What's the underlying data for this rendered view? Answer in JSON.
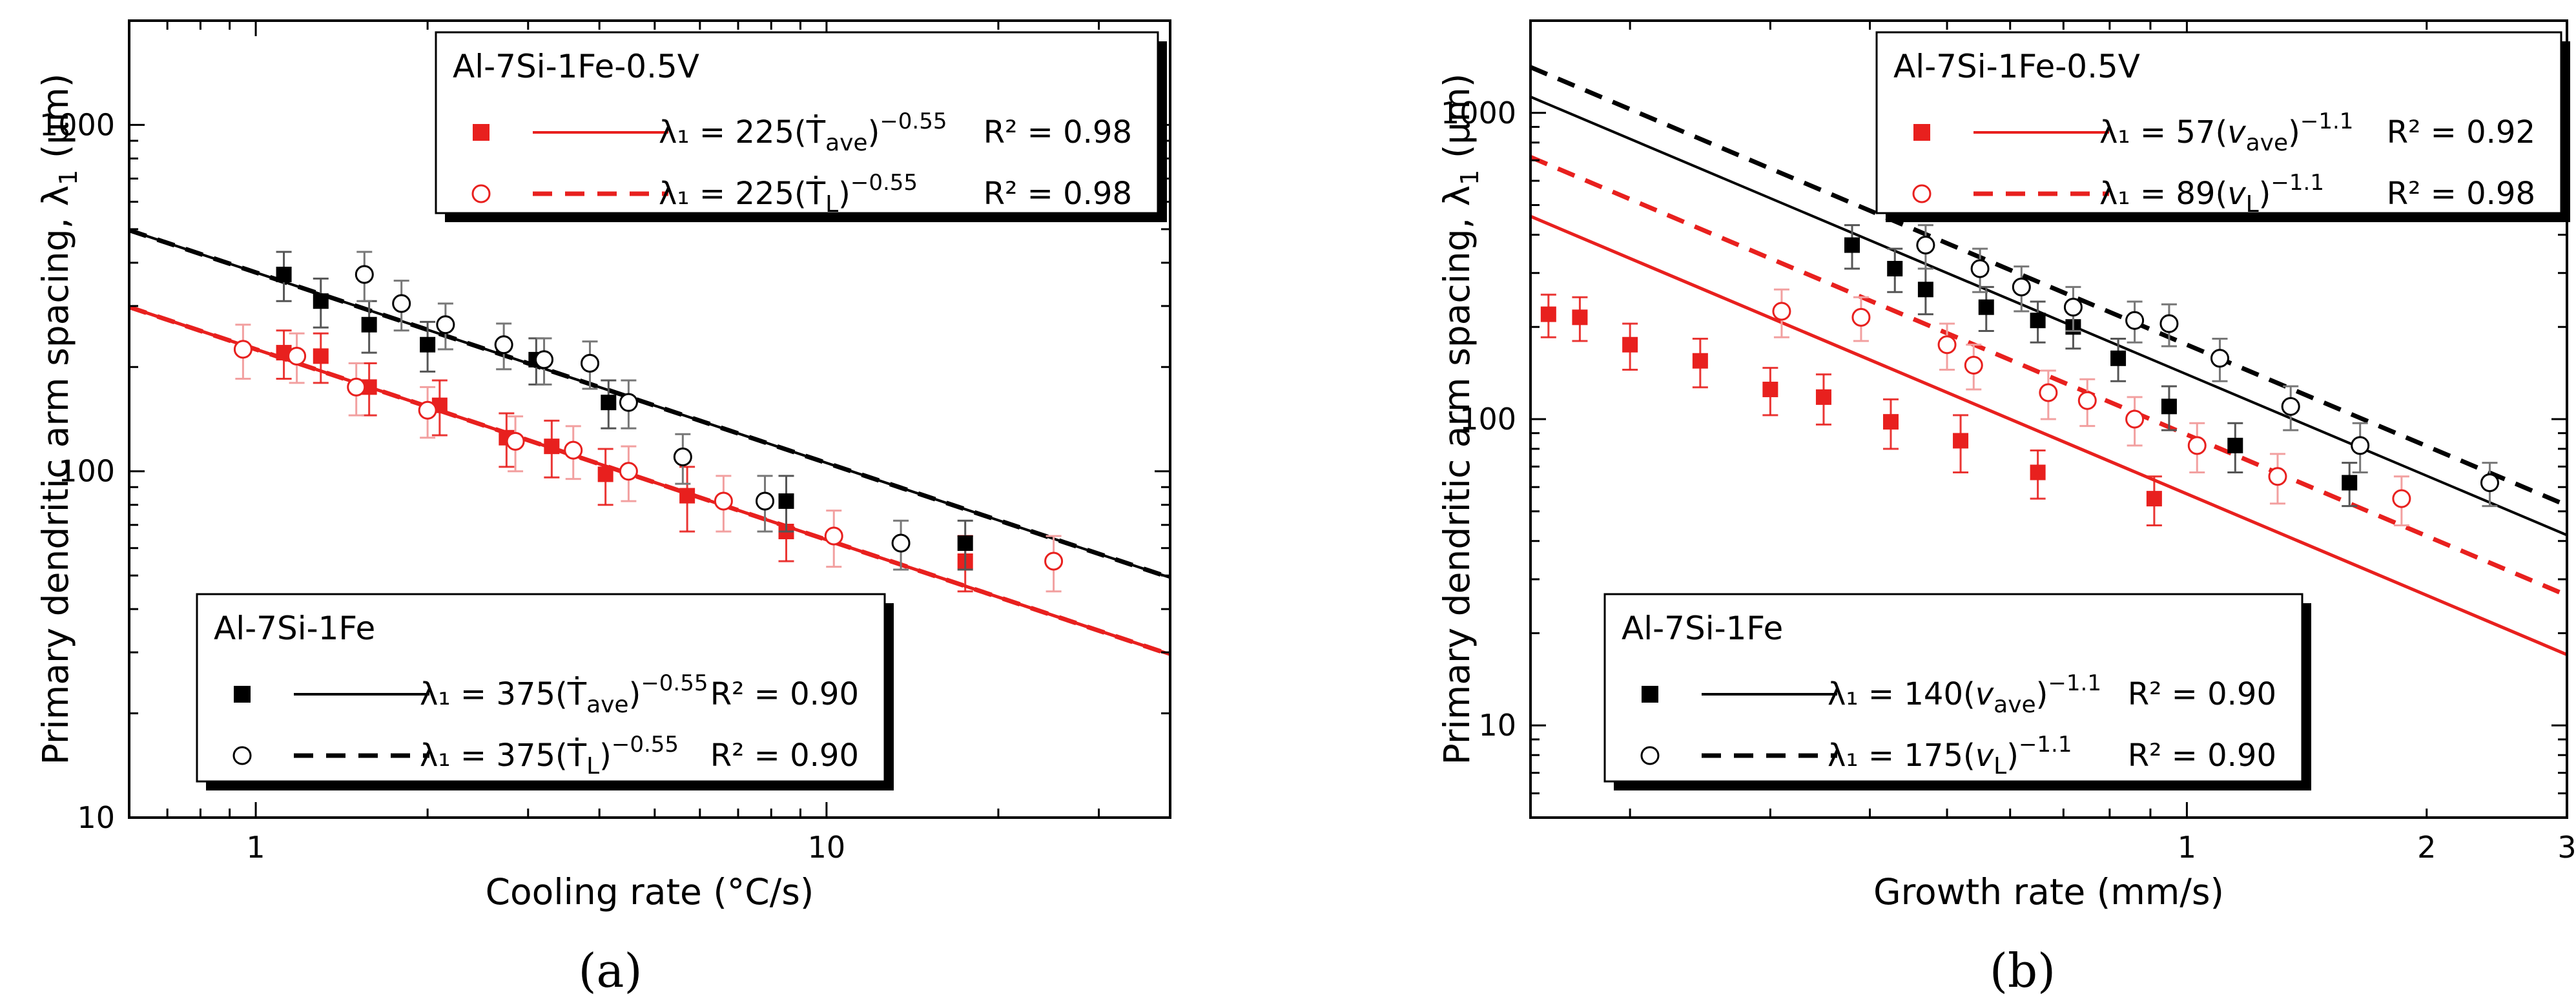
{
  "chart_data": [
    {
      "type": "scatter",
      "panel_label": "(a)",
      "xscale": "log",
      "yscale": "log",
      "xlim": [
        0.6,
        40
      ],
      "ylim": [
        10,
        2000
      ],
      "xticks": [
        {
          "v": 1,
          "label": "1"
        },
        {
          "v": 10,
          "label": "10"
        }
      ],
      "yticks": [
        {
          "v": 10,
          "label": "10"
        },
        {
          "v": 100,
          "label": "100"
        },
        {
          "v": 1000,
          "label": "1000"
        }
      ],
      "xlabel": "Cooling rate (°C/s)",
      "ylabel": "Primary dendritic arm spacing, λ",
      "ylabel_sub": "1",
      "ylabel_unit": " (μm)",
      "series": [
        {
          "name": "Al-7Si-1Fe-0.5V T_ave",
          "color": "#e8201e",
          "marker": "square-filled",
          "errColor": "#e8201e",
          "errOpacity": 0.9,
          "points": [
            [
              1.12,
              220,
              35
            ],
            [
              1.3,
              215,
              35
            ],
            [
              1.58,
              175,
              30
            ],
            [
              2.1,
              155,
              28
            ],
            [
              2.75,
              125,
              22
            ],
            [
              3.3,
              118,
              22
            ],
            [
              4.1,
              98,
              18
            ],
            [
              5.7,
              85,
              18
            ],
            [
              8.5,
              67,
              12
            ],
            [
              17.5,
              55,
              10
            ]
          ]
        },
        {
          "name": "Al-7Si-1Fe-0.5V T_L",
          "color": "#e8201e",
          "marker": "circle-open",
          "errColor": "#f2a0a0",
          "errOpacity": 1,
          "points": [
            [
              0.95,
              225,
              40
            ],
            [
              1.18,
              215,
              35
            ],
            [
              1.5,
              175,
              30
            ],
            [
              2.0,
              150,
              25
            ],
            [
              2.85,
              122,
              22
            ],
            [
              3.6,
              115,
              20
            ],
            [
              4.5,
              100,
              18
            ],
            [
              6.6,
              82,
              15
            ],
            [
              10.3,
              65,
              12
            ],
            [
              25,
              55,
              10
            ]
          ]
        },
        {
          "name": "Al-7Si-1Fe T_ave",
          "color": "#000000",
          "marker": "square-filled",
          "errColor": "#555555",
          "errOpacity": 1,
          "points": [
            [
              1.12,
              370,
              60
            ],
            [
              1.3,
              310,
              50
            ],
            [
              1.58,
              265,
              45
            ],
            [
              2.0,
              232,
              38
            ],
            [
              3.1,
              210,
              32
            ],
            [
              4.15,
              158,
              25
            ],
            [
              8.5,
              82,
              15
            ],
            [
              17.5,
              62,
              10
            ]
          ]
        },
        {
          "name": "Al-7Si-1Fe T_L",
          "color": "#000000",
          "marker": "circle-open",
          "errColor": "#777777",
          "errOpacity": 1,
          "points": [
            [
              1.55,
              370,
              60
            ],
            [
              1.8,
              305,
              50
            ],
            [
              2.15,
              265,
              40
            ],
            [
              2.72,
              232,
              35
            ],
            [
              3.2,
              210,
              32
            ],
            [
              3.85,
              205,
              32
            ],
            [
              4.5,
              158,
              25
            ],
            [
              5.6,
              110,
              18
            ],
            [
              7.8,
              82,
              15
            ],
            [
              13.5,
              62,
              10
            ]
          ]
        }
      ],
      "fits": [
        {
          "name": "red solid",
          "A": 225,
          "n": -0.55,
          "color": "#e8201e",
          "dash": "none",
          "width": 5
        },
        {
          "name": "red dashed",
          "A": 225,
          "n": -0.55,
          "color": "#e8201e",
          "dash": "28 18",
          "width": 7
        },
        {
          "name": "black solid",
          "A": 375,
          "n": -0.55,
          "color": "#000000",
          "dash": "none",
          "width": 4
        },
        {
          "name": "black dashed",
          "A": 375,
          "n": -0.55,
          "color": "#000000",
          "dash": "28 18",
          "width": 7
        }
      ],
      "legends": [
        {
          "title": "Al-7Si-1Fe-0.5V",
          "position": "top-center",
          "entries": [
            {
              "marker": "square-filled",
              "color": "#e8201e",
              "dash": "none",
              "eq_coef": "λ₁ = 225(",
              "eq_var": "Ṫ",
              "eq_sub": "ave",
              "eq_exp": "−0.55",
              "r2": "R² = 0.98"
            },
            {
              "marker": "circle-open",
              "color": "#e8201e",
              "dash": "dashed",
              "eq_coef": "λ₁ = 225(",
              "eq_var": "Ṫ",
              "eq_sub": "L",
              "eq_exp": "−0.55",
              "r2": "R² = 0.98"
            }
          ]
        },
        {
          "title": "Al-7Si-1Fe",
          "position": "bottom-left",
          "entries": [
            {
              "marker": "square-filled",
              "color": "#000000",
              "dash": "none",
              "eq_coef": "λ₁ = 375(",
              "eq_var": "Ṫ",
              "eq_sub": "ave",
              "eq_exp": "−0.55",
              "r2": "R² = 0.90"
            },
            {
              "marker": "circle-open",
              "color": "#000000",
              "dash": "dashed",
              "eq_coef": "λ₁ = 375(",
              "eq_var": "Ṫ",
              "eq_sub": "L",
              "eq_exp": "−0.55",
              "r2": "R² = 0.90"
            }
          ]
        }
      ]
    },
    {
      "type": "scatter",
      "panel_label": "(b)",
      "xscale": "log",
      "yscale": "log",
      "xlim": [
        0.15,
        3
      ],
      "ylim": [
        5,
        2000
      ],
      "xticks": [
        {
          "v": 1,
          "label": "1"
        },
        {
          "v": 2,
          "label": "2"
        },
        {
          "v": 3,
          "label": "3"
        }
      ],
      "yticks": [
        {
          "v": 10,
          "label": "10"
        },
        {
          "v": 100,
          "label": "100"
        },
        {
          "v": 1000,
          "label": "1000"
        }
      ],
      "xlabel": "Growth rate (mm/s)",
      "ylabel": "Primary dendritic arm spacing, λ",
      "ylabel_sub": "1",
      "ylabel_unit": " (μm)",
      "series": [
        {
          "name": "Al-7Si-1Fe-0.5V v_ave",
          "color": "#e8201e",
          "marker": "square-filled",
          "errColor": "#e8201e",
          "errOpacity": 0.9,
          "points": [
            [
              0.158,
              220,
              35
            ],
            [
              0.173,
              215,
              35
            ],
            [
              0.2,
              175,
              30
            ],
            [
              0.245,
              155,
              28
            ],
            [
              0.3,
              125,
              22
            ],
            [
              0.35,
              118,
              22
            ],
            [
              0.425,
              98,
              18
            ],
            [
              0.52,
              85,
              18
            ],
            [
              0.65,
              67,
              12
            ],
            [
              0.91,
              55,
              10
            ]
          ]
        },
        {
          "name": "Al-7Si-1Fe-0.5V v_L",
          "color": "#e8201e",
          "marker": "circle-open",
          "errColor": "#f2a0a0",
          "errOpacity": 1,
          "points": [
            [
              0.31,
              225,
              40
            ],
            [
              0.39,
              215,
              35
            ],
            [
              0.5,
              175,
              30
            ],
            [
              0.54,
              150,
              25
            ],
            [
              0.67,
              122,
              22
            ],
            [
              0.75,
              115,
              20
            ],
            [
              0.86,
              100,
              18
            ],
            [
              1.03,
              82,
              15
            ],
            [
              1.3,
              65,
              12
            ],
            [
              1.86,
              55,
              10
            ]
          ]
        },
        {
          "name": "Al-7Si-1Fe v_ave",
          "color": "#000000",
          "marker": "square-filled",
          "errColor": "#555555",
          "errOpacity": 1,
          "points": [
            [
              0.38,
              370,
              60
            ],
            [
              0.43,
              310,
              50
            ],
            [
              0.47,
              265,
              45
            ],
            [
              0.56,
              232,
              38
            ],
            [
              0.65,
              210,
              32
            ],
            [
              0.72,
              200,
              30
            ],
            [
              0.82,
              158,
              25
            ],
            [
              0.95,
              110,
              18
            ],
            [
              1.15,
              82,
              15
            ],
            [
              1.6,
              62,
              10
            ]
          ]
        },
        {
          "name": "Al-7Si-1Fe v_L",
          "color": "#000000",
          "marker": "circle-open",
          "errColor": "#777777",
          "errOpacity": 1,
          "points": [
            [
              0.47,
              370,
              60
            ],
            [
              0.55,
              310,
              50
            ],
            [
              0.62,
              270,
              45
            ],
            [
              0.72,
              232,
              38
            ],
            [
              0.86,
              210,
              32
            ],
            [
              0.95,
              205,
              32
            ],
            [
              1.1,
              158,
              25
            ],
            [
              1.35,
              110,
              18
            ],
            [
              1.65,
              82,
              15
            ],
            [
              2.4,
              62,
              10
            ]
          ]
        }
      ],
      "fits": [
        {
          "name": "red solid",
          "A": 57,
          "n": -1.1,
          "color": "#e8201e",
          "dash": "none",
          "width": 5
        },
        {
          "name": "red dashed",
          "A": 89,
          "n": -1.1,
          "color": "#e8201e",
          "dash": "28 18",
          "width": 7
        },
        {
          "name": "black solid",
          "A": 140,
          "n": -1.1,
          "color": "#000000",
          "dash": "none",
          "width": 4
        },
        {
          "name": "black dashed",
          "A": 175,
          "n": -1.1,
          "color": "#000000",
          "dash": "28 18",
          "width": 7
        }
      ],
      "legends": [
        {
          "title": "Al-7Si-1Fe-0.5V",
          "position": "top-right",
          "entries": [
            {
              "marker": "square-filled",
              "color": "#e8201e",
              "dash": "none",
              "eq_coef": "λ₁ = 57(",
              "eq_var": "v",
              "eq_sub": "ave",
              "eq_exp": "−1.1",
              "r2": "R² = 0.92"
            },
            {
              "marker": "circle-open",
              "color": "#e8201e",
              "dash": "dashed",
              "eq_coef": "λ₁ = 89(",
              "eq_var": "v",
              "eq_sub": "L",
              "eq_exp": "−1.1",
              "r2": "R² = 0.98"
            }
          ]
        },
        {
          "title": "Al-7Si-1Fe",
          "position": "bottom-left",
          "entries": [
            {
              "marker": "square-filled",
              "color": "#000000",
              "dash": "none",
              "eq_coef": "λ₁ = 140(",
              "eq_var": "v",
              "eq_sub": "ave",
              "eq_exp": "−1.1",
              "r2": "R² = 0.90"
            },
            {
              "marker": "circle-open",
              "color": "#000000",
              "dash": "dashed",
              "eq_coef": "λ₁ = 175(",
              "eq_var": "v",
              "eq_sub": "L",
              "eq_exp": "−1.1",
              "r2": "R² = 0.90"
            }
          ]
        }
      ]
    }
  ]
}
